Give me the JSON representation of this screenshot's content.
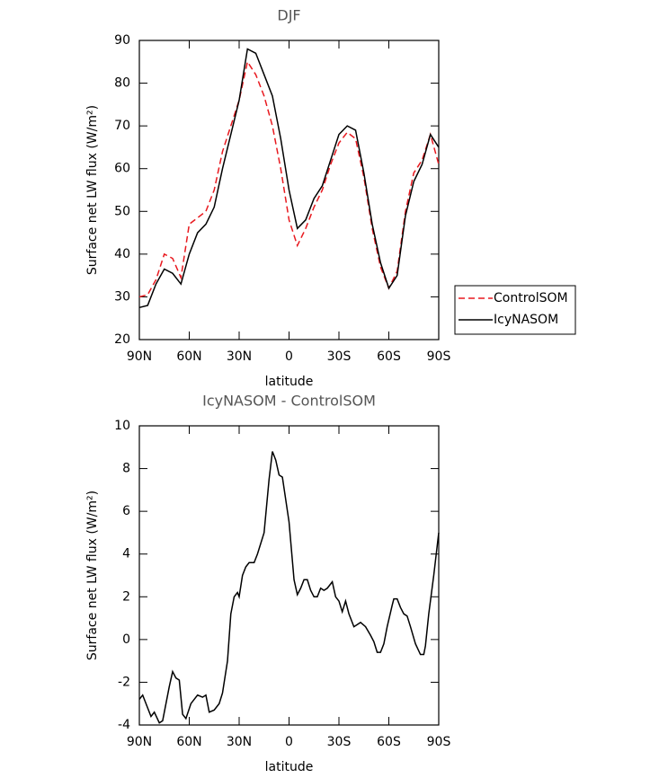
{
  "chart_data": [
    {
      "type": "line",
      "title": "DJF",
      "xlabel": "latitude",
      "ylabel": "Surface net LW flux (W/m²)",
      "x": [
        90,
        85,
        80,
        75,
        70,
        65,
        60,
        55,
        50,
        45,
        40,
        35,
        30,
        25,
        20,
        15,
        10,
        5,
        0,
        -5,
        -10,
        -15,
        -20,
        -25,
        -30,
        -35,
        -40,
        -45,
        -50,
        -55,
        -60,
        -65,
        -70,
        -75,
        -80,
        -85,
        -90
      ],
      "series": [
        {
          "name": "ControlSOM",
          "color": "#e8191f",
          "linestyle": "dashed",
          "values": [
            30,
            30.5,
            34,
            40,
            39,
            34.5,
            47,
            48.5,
            50,
            55,
            64,
            70,
            76,
            85,
            82,
            77,
            70,
            60,
            48,
            42,
            46,
            51,
            55,
            61,
            66,
            68.5,
            67,
            58,
            46,
            37,
            32,
            36,
            50,
            59,
            62,
            68,
            61
          ]
        },
        {
          "name": "IcyNASOM",
          "color": "#000000",
          "linestyle": "solid",
          "values": [
            27.5,
            28,
            33,
            36.5,
            35.5,
            33,
            40,
            45,
            47,
            51,
            60,
            68,
            76,
            88,
            87,
            82,
            77,
            67,
            55,
            46,
            48,
            53,
            56,
            62,
            68,
            70,
            69,
            59,
            47,
            38,
            32,
            35,
            49,
            57,
            61,
            68,
            65
          ]
        }
      ],
      "xlim": [
        90,
        -90
      ],
      "xticks": [
        {
          "value": 90,
          "label": "90N"
        },
        {
          "value": 60,
          "label": "60N"
        },
        {
          "value": 30,
          "label": "30N"
        },
        0,
        {
          "value": -30,
          "label": "30S"
        },
        {
          "value": -60,
          "label": "60S"
        },
        {
          "value": -90,
          "label": "90S"
        }
      ],
      "ylim": [
        20,
        90
      ],
      "yticks": [
        20,
        30,
        40,
        50,
        60,
        70,
        80,
        90
      ],
      "legend": "outside-right"
    },
    {
      "type": "line",
      "title": "IcyNASOM - ControlSOM",
      "xlabel": "latitude",
      "ylabel": "Surface net LW flux (W/m²)",
      "x": [
        90,
        88,
        85,
        83,
        81,
        78,
        76,
        72,
        70,
        68,
        66,
        64,
        62,
        59,
        55,
        52,
        50,
        48,
        45,
        42,
        40,
        37,
        35,
        33,
        31,
        30,
        28,
        26,
        24,
        21,
        19,
        15,
        12,
        10,
        8,
        6,
        4,
        0,
        -3,
        -5,
        -7,
        -9,
        -11,
        -13,
        -15,
        -17,
        -19,
        -21,
        -23,
        -26,
        -28,
        -30,
        -32,
        -34,
        -36,
        -39,
        -41,
        -43,
        -46,
        -49,
        -51,
        -53,
        -55,
        -57,
        -59,
        -62,
        -63,
        -65,
        -67,
        -69,
        -71,
        -73,
        -76,
        -79,
        -81,
        -82,
        -84,
        -87,
        -90
      ],
      "values": [
        -2.8,
        -2.6,
        -3.2,
        -3.6,
        -3.4,
        -3.9,
        -3.8,
        -2.2,
        -1.5,
        -1.8,
        -1.9,
        -3.5,
        -3.7,
        -3.0,
        -2.6,
        -2.7,
        -2.6,
        -3.4,
        -3.3,
        -3.0,
        -2.5,
        -1.0,
        1.2,
        2.0,
        2.2,
        2.0,
        3.0,
        3.4,
        3.6,
        3.6,
        4.0,
        5.0,
        7.5,
        8.8,
        8.4,
        7.7,
        7.6,
        5.5,
        2.8,
        2.1,
        2.4,
        2.8,
        2.8,
        2.3,
        2.0,
        2.0,
        2.4,
        2.3,
        2.4,
        2.7,
        2.0,
        1.8,
        1.3,
        1.8,
        1.2,
        0.6,
        0.7,
        0.8,
        0.6,
        0.2,
        -0.1,
        -0.6,
        -0.6,
        -0.2,
        0.6,
        1.6,
        1.9,
        1.9,
        1.5,
        1.2,
        1.1,
        0.6,
        -0.2,
        -0.7,
        -0.7,
        -0.3,
        1.2,
        3.0,
        5.0
      ],
      "color": "#000000",
      "xlim": [
        90,
        -90
      ],
      "xticks": [
        {
          "value": 90,
          "label": "90N"
        },
        {
          "value": 60,
          "label": "60N"
        },
        {
          "value": 30,
          "label": "30N"
        },
        0,
        {
          "value": -30,
          "label": "30S"
        },
        {
          "value": -60,
          "label": "60S"
        },
        {
          "value": -90,
          "label": "90S"
        }
      ],
      "ylim": [
        -4,
        10
      ],
      "yticks": [
        -4,
        -2,
        0,
        2,
        4,
        6,
        8,
        10
      ]
    }
  ]
}
